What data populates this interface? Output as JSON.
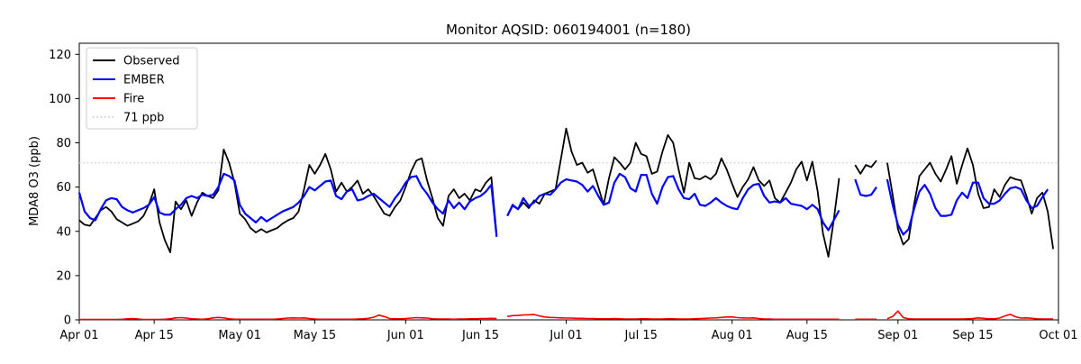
{
  "title": "Monitor AQSID: 060194001 (n=180)",
  "ylabel": "MDA8 O3 (ppb)",
  "colors": {
    "observed": "#000000",
    "ember": "#0000ff",
    "fire": "#ff0000",
    "threshold": "#d3d3d3",
    "axis": "#000000",
    "legend_border": "#cccccc",
    "background": "#ffffff"
  },
  "chart_data": {
    "type": "line",
    "title": "Monitor AQSID: 060194001 (n=180)",
    "xlabel": "",
    "ylabel": "MDA8 O3 (ppb)",
    "x_unit": "day index from Apr 01",
    "x_domain": [
      0,
      183
    ],
    "ylim": [
      0,
      125
    ],
    "y_ticks": [
      0,
      20,
      40,
      60,
      80,
      100,
      120
    ],
    "x_tick_days": [
      0,
      14,
      30,
      44,
      61,
      75,
      91,
      105,
      122,
      136,
      153,
      167,
      183
    ],
    "x_tick_labels": [
      "Apr 01",
      "Apr 15",
      "May 01",
      "May 15",
      "Jun 01",
      "Jun 15",
      "Jul 01",
      "Jul 15",
      "Aug 01",
      "Aug 15",
      "Sep 01",
      "Sep 15",
      "Oct 01"
    ],
    "grid": false,
    "legend_position": "upper left",
    "threshold": {
      "value": 71,
      "label": "71 ppb",
      "color": "#d3d3d3",
      "style": "dotted"
    },
    "series": [
      {
        "name": "Observed",
        "color": "#000000",
        "style": "solid",
        "width": 1.8,
        "values": [
          45,
          43,
          42.5,
          46,
          49.5,
          51,
          49,
          45.5,
          44,
          42.5,
          43.5,
          44.5,
          47,
          52,
          59,
          44,
          36,
          30.5,
          53.5,
          50,
          54,
          47,
          53,
          57.5,
          56,
          55,
          58.5,
          77,
          71,
          62,
          48,
          45.5,
          41.5,
          39.5,
          41,
          39.5,
          40.5,
          41.5,
          43.5,
          45,
          46,
          49,
          59,
          70,
          66,
          70,
          75,
          68,
          58,
          62,
          58,
          60,
          63,
          57,
          59,
          56,
          52,
          48,
          47,
          51,
          54,
          60,
          67,
          72,
          73,
          63,
          55,
          46,
          42.5,
          56,
          59,
          55,
          57,
          54,
          59,
          58,
          62,
          64.5,
          38.5,
          null,
          47,
          51.5,
          50,
          53,
          50.5,
          54,
          52.5,
          57,
          58,
          59,
          72.5,
          86.5,
          76,
          70,
          71,
          66.5,
          68,
          60,
          52,
          64,
          73.5,
          71,
          68,
          71,
          80,
          75,
          74,
          66,
          67,
          76,
          83.5,
          80,
          68,
          57.5,
          71,
          64,
          63.5,
          65,
          63.5,
          66,
          73,
          68,
          61.5,
          55.5,
          60,
          63.5,
          69,
          63,
          60.5,
          63,
          55,
          53,
          57.5,
          62,
          68,
          71.5,
          63,
          71.5,
          58,
          39,
          28.5,
          45,
          64,
          null,
          null,
          70,
          66,
          70,
          69,
          72,
          null,
          71,
          56.5,
          41,
          34,
          36.5,
          52,
          65,
          68,
          71,
          66,
          62.5,
          68,
          74,
          61.5,
          70,
          77.5,
          70,
          57,
          50.5,
          51,
          59,
          55.5,
          61,
          64.5,
          63.5,
          63,
          56,
          48,
          55,
          57.5,
          49,
          32,
          null
        ]
      },
      {
        "name": "EMBER",
        "color": "#0000ff",
        "style": "solid",
        "width": 2.2,
        "values": [
          57.5,
          49,
          46,
          45,
          50,
          54,
          55,
          54.5,
          51,
          49.5,
          48.5,
          49.5,
          50.5,
          52,
          55.5,
          48.5,
          47.5,
          47.5,
          50,
          52,
          55,
          56,
          55,
          56.5,
          56,
          56.5,
          60,
          66,
          65,
          63,
          52,
          48,
          46,
          44,
          46.5,
          44.5,
          46,
          47.5,
          49,
          50,
          51,
          53,
          56,
          60,
          58.5,
          60.5,
          62.5,
          63,
          56,
          54.5,
          58,
          59,
          54,
          54.5,
          56,
          57,
          55,
          53,
          51,
          55,
          58,
          62,
          64.5,
          65,
          60,
          57,
          53,
          50,
          48,
          54,
          50.5,
          53,
          50,
          53.5,
          55,
          56,
          58,
          61,
          37.5,
          null,
          47,
          52,
          50,
          55,
          51.5,
          53,
          56,
          57,
          56.5,
          59,
          62,
          63.5,
          63,
          62.5,
          61,
          58,
          60.5,
          56,
          52,
          53,
          62,
          66,
          64.5,
          59.5,
          58,
          65.5,
          65.5,
          57,
          52.5,
          60,
          64.5,
          65,
          59,
          55,
          54.5,
          57,
          52,
          51.5,
          53,
          55,
          53,
          51.5,
          50.5,
          50,
          55,
          59,
          61,
          61.5,
          56,
          53,
          53.5,
          53,
          55,
          52.5,
          52,
          51.5,
          50,
          52,
          50,
          44,
          40.5,
          45,
          49.5,
          null,
          null,
          63.5,
          56.5,
          56,
          56.5,
          60,
          null,
          63.5,
          52,
          43,
          38.5,
          41,
          50,
          58,
          61,
          57,
          50.5,
          47,
          47,
          47.5,
          54,
          57.5,
          55,
          62,
          62,
          55,
          52.5,
          52.5,
          54,
          57,
          59.5,
          60,
          59,
          54,
          50.5,
          51.5,
          55.5,
          59,
          null,
          null
        ]
      },
      {
        "name": "Fire",
        "color": "#ff0000",
        "style": "solid",
        "width": 1.6,
        "values": [
          0.2,
          0.2,
          0.2,
          0.2,
          0.2,
          0.2,
          0.2,
          0.2,
          0.3,
          0.5,
          0.6,
          0.4,
          0.2,
          0.2,
          0.2,
          0.2,
          0.3,
          0.5,
          0.9,
          1,
          0.8,
          0.5,
          0.4,
          0.3,
          0.5,
          0.9,
          1.1,
          0.9,
          0.5,
          0.3,
          0.3,
          0.3,
          0.3,
          0.3,
          0.3,
          0.3,
          0.3,
          0.4,
          0.6,
          0.8,
          0.9,
          0.8,
          0.9,
          0.6,
          0.4,
          0.3,
          0.3,
          0.3,
          0.3,
          0.3,
          0.3,
          0.3,
          0.4,
          0.5,
          0.7,
          1.2,
          2.1,
          1.5,
          0.6,
          0.5,
          0.5,
          0.6,
          0.8,
          1,
          0.9,
          0.8,
          0.5,
          0.4,
          0.4,
          0.4,
          0.3,
          0.4,
          0.4,
          0.5,
          0.5,
          0.6,
          0.6,
          0.7,
          0.6,
          null,
          1.5,
          1.9,
          2,
          2.2,
          2.3,
          2.4,
          1.8,
          1.3,
          1.1,
          1,
          0.9,
          0.8,
          0.8,
          0.7,
          0.7,
          0.6,
          0.6,
          0.5,
          0.5,
          0.5,
          0.6,
          0.5,
          0.4,
          0.4,
          0.4,
          0.5,
          0.5,
          0.4,
          0.4,
          0.4,
          0.5,
          0.5,
          0.4,
          0.4,
          0.4,
          0.5,
          0.6,
          0.7,
          0.8,
          0.9,
          1.1,
          1.3,
          1.3,
          1,
          0.9,
          0.8,
          0.9,
          0.6,
          0.4,
          0.4,
          0.3,
          0.3,
          0.3,
          0.3,
          0.3,
          0.3,
          0.3,
          0.3,
          0.3,
          0.3,
          0.3,
          0.3,
          0.3,
          null,
          null,
          0.3,
          0.3,
          0.3,
          0.3,
          0.3,
          null,
          0.5,
          1.5,
          4,
          1,
          0.5,
          0.4,
          0.4,
          0.4,
          0.4,
          0.4,
          0.4,
          0.4,
          0.4,
          0.4,
          0.4,
          0.5,
          0.6,
          0.9,
          0.7,
          0.5,
          0.5,
          0.8,
          1.8,
          2.5,
          1.4,
          0.8,
          0.9,
          0.7,
          0.5,
          0.4,
          0.4,
          0.4,
          null
        ]
      }
    ]
  },
  "legend": {
    "entries": [
      {
        "label": "Observed",
        "color": "#000000",
        "style": "solid"
      },
      {
        "label": "EMBER",
        "color": "#0000ff",
        "style": "solid"
      },
      {
        "label": "Fire",
        "color": "#ff0000",
        "style": "solid"
      },
      {
        "label": "71 ppb",
        "color": "#d3d3d3",
        "style": "dotted"
      }
    ]
  }
}
